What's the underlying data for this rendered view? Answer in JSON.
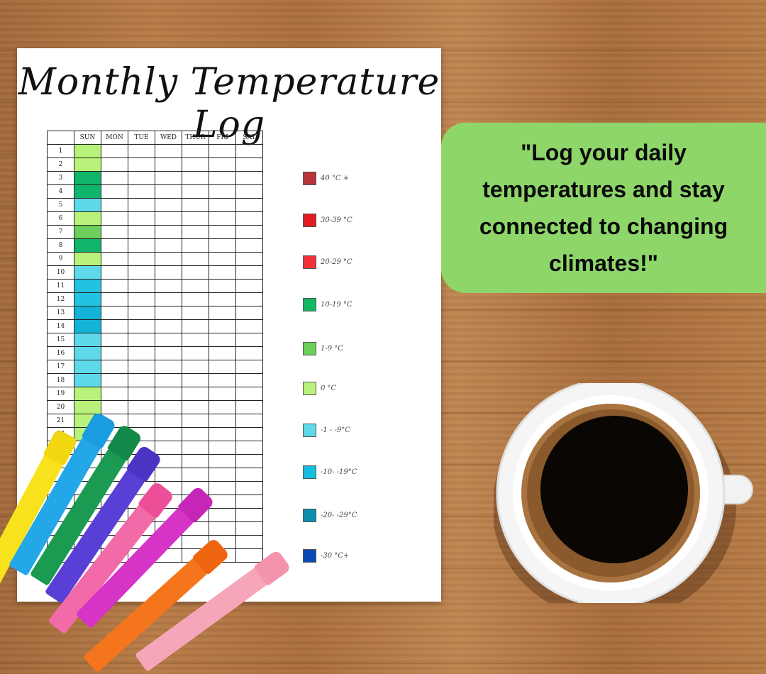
{
  "title": "Monthly Temperature Log",
  "table": {
    "days": [
      "SUN",
      "MON",
      "TUE",
      "WED",
      "THUR",
      "FRI",
      "SAT"
    ],
    "visible_rows": [
      "1",
      "2",
      "3",
      "4",
      "5",
      "6",
      "7",
      "8",
      "9",
      "10",
      "11",
      "12",
      "13",
      "14",
      "15",
      "16",
      "17",
      "18",
      "19",
      "20",
      "21",
      "22"
    ],
    "sun_fill_colors": [
      "#b9f27a",
      "#b9f27a",
      "#0fb56a",
      "#0fb56a",
      "#5ed9ea",
      "#b9f27a",
      "#6ccf59",
      "#0fb56a",
      "#b9f27a",
      "#5ed9ea",
      "#22c3e0",
      "#22c3e0",
      "#13b3d8",
      "#13b3d8",
      "#5ed9ea",
      "#5ed9ea",
      "#5ed9ea",
      "#5ed9ea",
      "#b9f27a",
      "#b9f27a",
      "#b9f27a",
      "#b9f27a"
    ]
  },
  "legend": [
    {
      "label": "40 °C +",
      "color": "#b8333a"
    },
    {
      "label": "30-39 °C",
      "color": "#e01b22"
    },
    {
      "label": "20-29 °C",
      "color": "#f03138"
    },
    {
      "label": "10-19 °C",
      "color": "#12b865"
    },
    {
      "label": "1-9 °C",
      "color": "#6ccf59"
    },
    {
      "label": "0 °C",
      "color": "#b9f27a"
    },
    {
      "label": "-1 - -9°C",
      "color": "#5ed9ea"
    },
    {
      "label": "-10- -19°C",
      "color": "#15bde0"
    },
    {
      "label": "-20- -29°C",
      "color": "#0e8eaa"
    },
    {
      "label": "-30 °C+",
      "color": "#0a48b5"
    }
  ],
  "quote": "\"Log your daily temperatures and stay connected to changing climates!\"",
  "markers": [
    {
      "color": "#f7e21c",
      "cap": "#f2d60f"
    },
    {
      "color": "#23a7e8",
      "cap": "#1a9ce0"
    },
    {
      "color": "#1b9a52",
      "cap": "#138848"
    },
    {
      "color": "#5a3fd6",
      "cap": "#4c33c4"
    },
    {
      "color": "#f26aa8",
      "cap": "#ec4f98"
    },
    {
      "color": "#d534c6",
      "cap": "#c526b8"
    },
    {
      "color": "#f5751c",
      "cap": "#ef6510"
    },
    {
      "color": "#f7a6b9",
      "cap": "#f494ac"
    }
  ]
}
